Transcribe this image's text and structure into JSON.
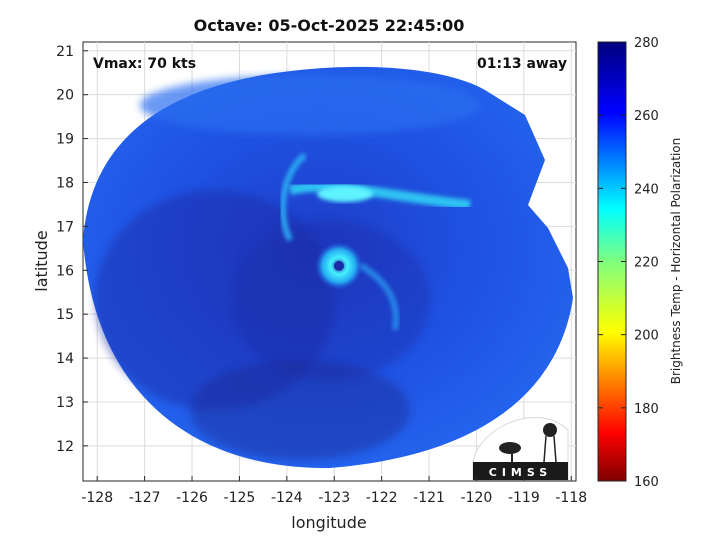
{
  "chart_data": {
    "type": "heatmap",
    "title": "Octave: 05-Oct-2025 22:45:00",
    "xlabel": "longitude",
    "ylabel": "latitude",
    "xlim": [
      -128.3,
      -117.9
    ],
    "ylim": [
      11.2,
      21.2
    ],
    "xticks": [
      -128,
      -127,
      -126,
      -125,
      -124,
      -123,
      -122,
      -121,
      -120,
      -119,
      -118
    ],
    "yticks": [
      12,
      13,
      14,
      15,
      16,
      17,
      18,
      19,
      20,
      21
    ],
    "grid": true,
    "annotations": {
      "vmax": "Vmax: 70 kts",
      "time_away": "01:13 away"
    },
    "storm_center": {
      "lon": -122.9,
      "lat": 16.1
    },
    "colorbar": {
      "label": "Brightness Temp - Horizontal Polarization",
      "min": 160,
      "max": 280,
      "ticks": [
        160,
        180,
        200,
        220,
        240,
        260,
        280
      ]
    }
  },
  "logo": {
    "text": "CIMSS"
  },
  "colors": {
    "cold_dark": "#1c2ba6",
    "base_blue": "#1f4fe0",
    "warm_cyan": "#38d6f0"
  }
}
